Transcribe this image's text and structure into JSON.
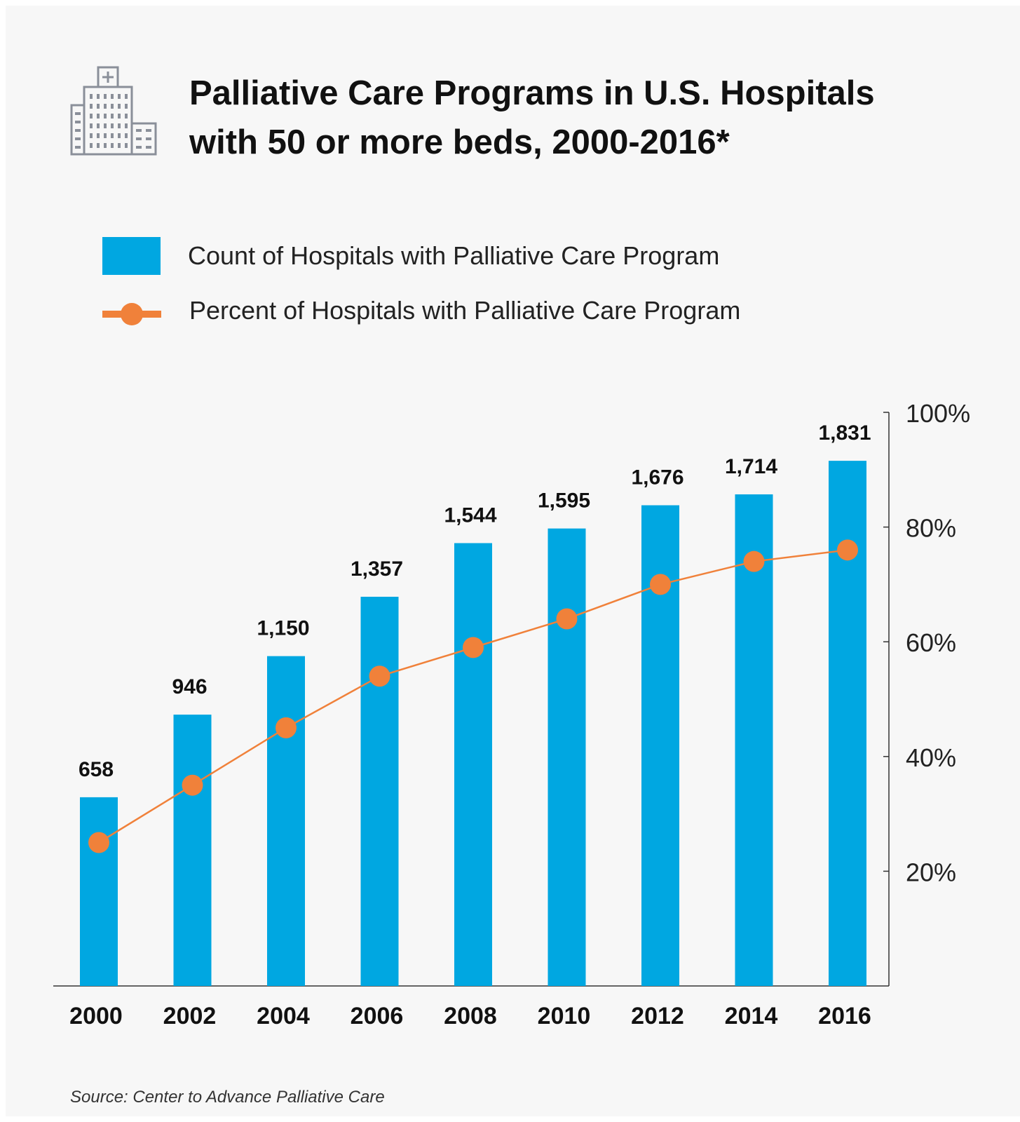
{
  "title_line1": "Palliative Care Programs in U.S. Hospitals",
  "title_line2": "with 50 or more beds, 2000-2016*",
  "header_icon": "hospital-building-icon",
  "source": "Source: Center to Advance Palliative Care",
  "colors": {
    "bar": "#00a7e1",
    "line": "#f0813a",
    "background": "#f7f7f7",
    "text": "#111111"
  },
  "chart_data": {
    "type": "bar",
    "title": "Palliative Care Programs in U.S. Hospitals with 50 or more beds, 2000-2016*",
    "categories": [
      "2000",
      "2002",
      "2004",
      "2006",
      "2008",
      "2010",
      "2012",
      "2014",
      "2016"
    ],
    "series": [
      {
        "name": "Count of Hospitals with Palliative Care Program",
        "type": "bar",
        "values": [
          658,
          946,
          1150,
          1357,
          1544,
          1595,
          1676,
          1714,
          1831
        ],
        "data_labels": [
          "658",
          "946",
          "1,150",
          "1,357",
          "1,544",
          "1,595",
          "1,676",
          "1,714",
          "1,831"
        ]
      },
      {
        "name": "Percent of Hospitals with Palliative Care Program",
        "type": "line",
        "axis": "right",
        "values": [
          25,
          35,
          45,
          54,
          59,
          64,
          70,
          74,
          76
        ]
      }
    ],
    "right_axis": {
      "ylim": [
        0,
        100
      ],
      "ticks": [
        20,
        40,
        60,
        80,
        100
      ],
      "tick_labels": [
        "20%",
        "40%",
        "60%",
        "80%",
        "100%"
      ]
    },
    "left_axis_ylim": [
      0,
      2000
    ],
    "legend_position": "top-left",
    "grid": false
  }
}
